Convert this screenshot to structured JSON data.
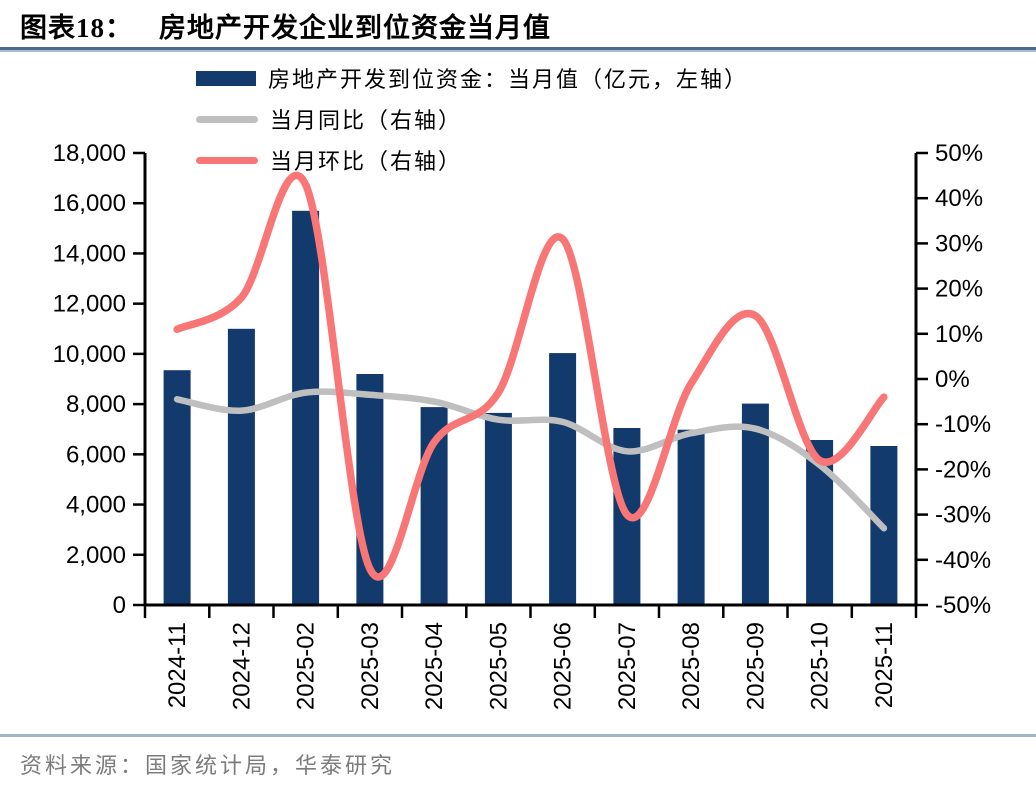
{
  "header": {
    "chart_label": "图表18：",
    "title": "房地产开发企业到位资金当月值"
  },
  "chart_data": {
    "type": "bar",
    "title": "房地产开发企业到位资金当月值",
    "categories": [
      "2024-11",
      "2024-12",
      "2025-02",
      "2025-03",
      "2025-04",
      "2025-05",
      "2025-06",
      "2025-07",
      "2025-08",
      "2025-09",
      "2025-10",
      "2025-11"
    ],
    "series": [
      {
        "name": "房地产开发到位资金：当月值（亿元，左轴）",
        "type": "bar",
        "axis": "left",
        "color": "#123a6d",
        "values": [
          9350,
          11000,
          15700,
          9200,
          7880,
          7650,
          10030,
          7050,
          6980,
          8020,
          6570,
          6330
        ]
      },
      {
        "name": "当月同比（右轴）",
        "type": "line",
        "axis": "right",
        "color": "#bfbfbf",
        "values": [
          -4.5,
          -7,
          -3,
          -3.5,
          -5,
          -9,
          -9.5,
          -16,
          -12,
          -11,
          -19,
          -33
        ]
      },
      {
        "name": "当月环比（右轴）",
        "type": "line",
        "axis": "right",
        "color": "#f87676",
        "values": [
          11,
          18,
          43,
          -42,
          -14,
          -3,
          31,
          -30,
          -1,
          14,
          -18,
          -4
        ]
      }
    ],
    "left_axis": {
      "min": 0,
      "max": 18000,
      "step": 2000,
      "tick_labels": [
        "0",
        "2,000",
        "4,000",
        "6,000",
        "8,000",
        "10,000",
        "12,000",
        "14,000",
        "16,000",
        "18,000"
      ]
    },
    "right_axis": {
      "min": -50,
      "max": 50,
      "step": 10,
      "tick_labels": [
        "-50%",
        "-40%",
        "-30%",
        "-20%",
        "-10%",
        "0%",
        "10%",
        "20%",
        "30%",
        "40%",
        "50%"
      ]
    },
    "grid": false,
    "legend_position": "top-left"
  },
  "footer": {
    "source": "资料来源：国家统计局，华泰研究"
  }
}
